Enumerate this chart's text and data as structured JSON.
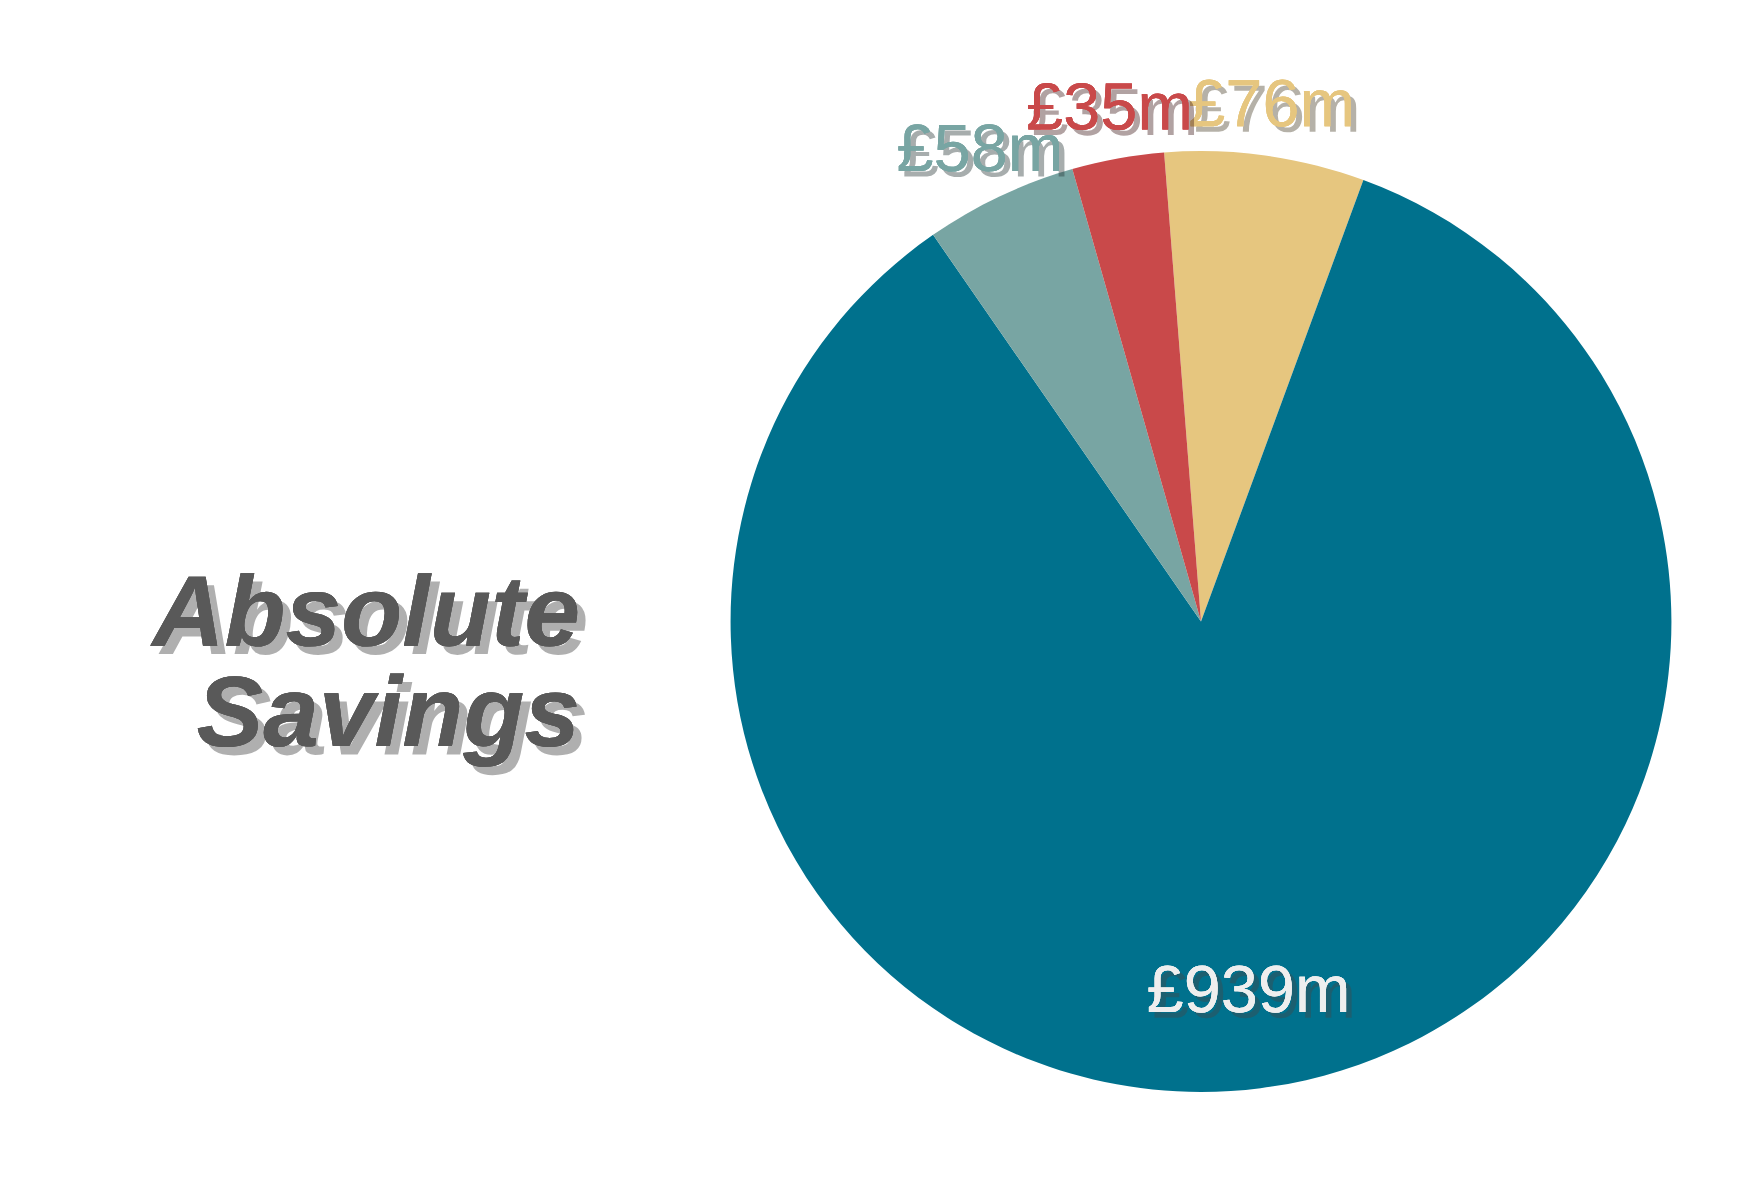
{
  "chart_data": {
    "type": "pie",
    "title": "Absolute Savings",
    "categories": [
      null,
      null,
      null,
      null
    ],
    "values": [
      76,
      939,
      58,
      35
    ],
    "colors": [
      "#e6c67f",
      "#00718d",
      "#78a5a3",
      "#c9494a"
    ],
    "value_labels": [
      "£76m",
      "£939m",
      "£58m",
      "£35m"
    ]
  }
}
